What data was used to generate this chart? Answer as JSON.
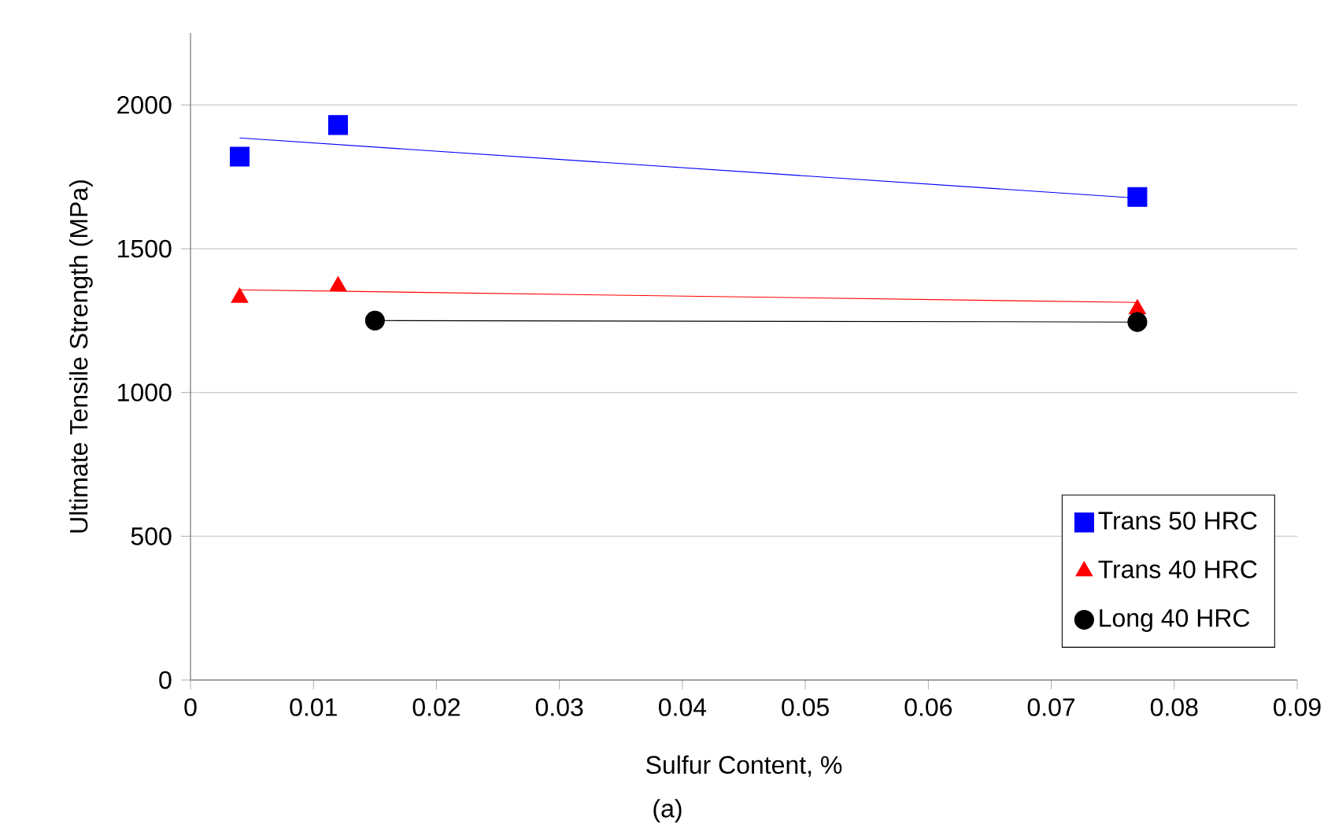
{
  "chart_data": {
    "type": "scatter",
    "xlabel": "Sulfur Content, %",
    "ylabel": "Ultimate Tensile Strength  (MPa)",
    "annotations": [
      "(a)"
    ],
    "xlim": [
      0,
      0.09
    ],
    "ylim": [
      0,
      2250
    ],
    "xticks": [
      0,
      0.01,
      0.02,
      0.03,
      0.04,
      0.05,
      0.06,
      0.07,
      0.08,
      0.09
    ],
    "yticks": [
      0,
      500,
      1000,
      1500,
      2000
    ],
    "grid": "y",
    "legend": "bottom right",
    "series": [
      {
        "type": "line",
        "color": "#0000ff",
        "x": [
          0.004,
          0.077
        ],
        "values": [
          1885,
          1676
        ],
        "marker": "none"
      },
      {
        "type": "line",
        "color": "#ff0000",
        "x": [
          0.004,
          0.077
        ],
        "values": [
          1357,
          1313
        ],
        "marker": "none"
      },
      {
        "type": "line",
        "color": "#000000",
        "x": [
          0.015,
          0.077
        ],
        "values": [
          1250,
          1245
        ],
        "marker": "none"
      },
      {
        "name": "Trans 50 HRC",
        "color": "#0000ff",
        "marker": "square",
        "x": [
          0.004,
          0.012,
          0.077
        ],
        "values": [
          1820,
          1930,
          1680
        ]
      },
      {
        "name": "Trans 40 HRC",
        "color": "#ff0000",
        "marker": "triangle",
        "x": [
          0.004,
          0.012,
          0.077
        ],
        "values": [
          1330,
          1370,
          1290
        ]
      },
      {
        "name": "Long 40 HRC",
        "color": "#000000",
        "marker": "circle",
        "x": [
          0.015,
          0.077
        ],
        "values": [
          1250,
          1245
        ]
      }
    ]
  }
}
